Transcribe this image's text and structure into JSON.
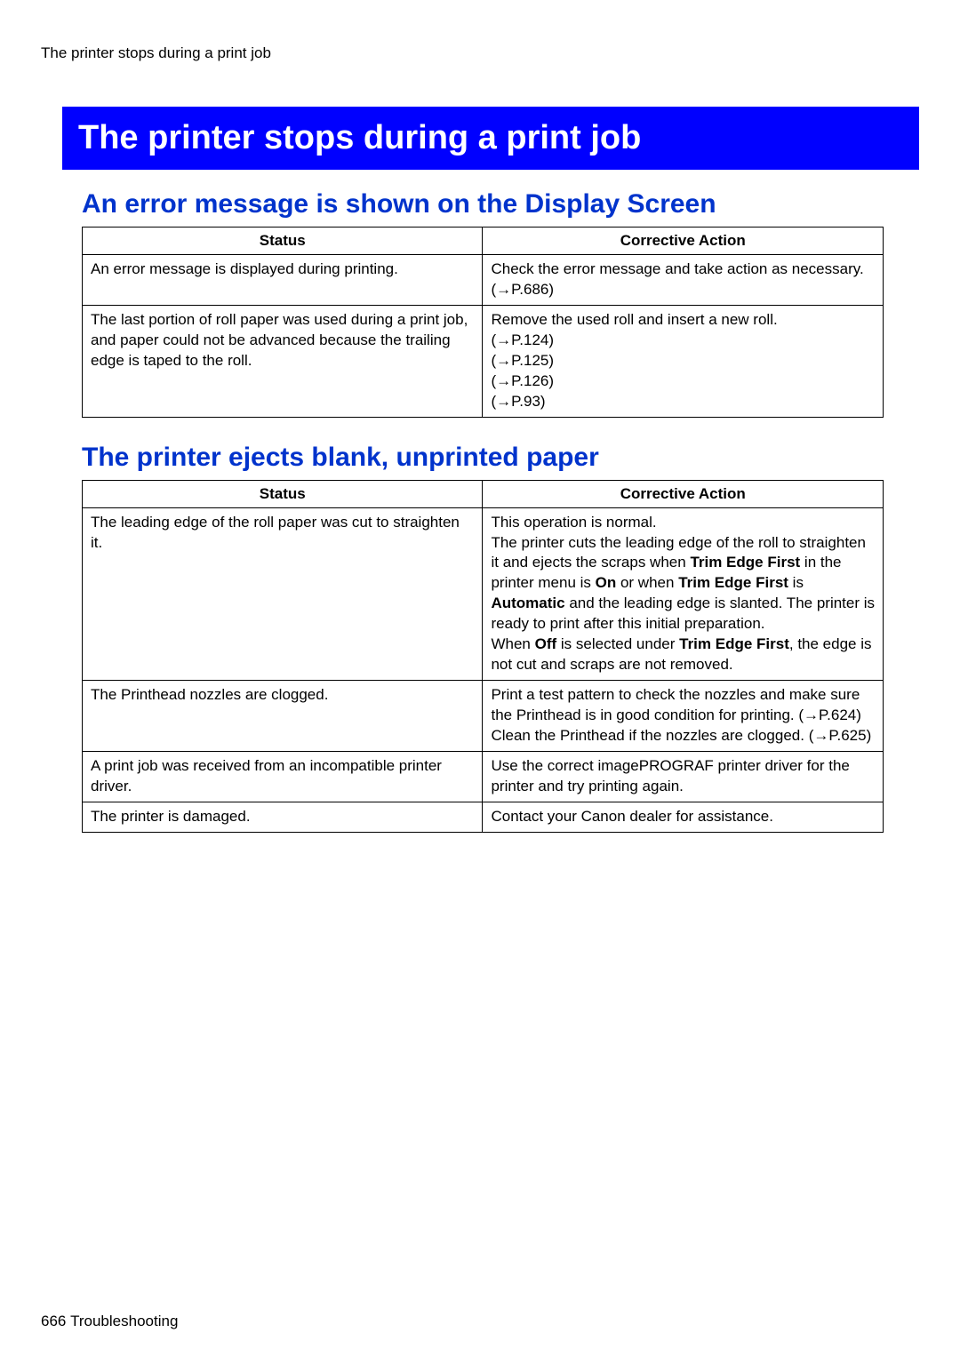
{
  "running_header": "The printer stops during a print job",
  "main_heading": {
    "text": "The printer stops during a print job",
    "background_color": "#0000FF",
    "text_color": "#FFFFFF"
  },
  "section1": {
    "heading": "An error message is shown on the Display Screen",
    "heading_color": "#0033CC",
    "columns": {
      "status": "Status",
      "action": "Corrective Action"
    },
    "rows": [
      {
        "status": "An error message is displayed during printing.",
        "action": [
          {
            "t": "Check the error message and take action as necessary."
          },
          {
            "t": "(→P.686)"
          }
        ]
      },
      {
        "status": "The last portion of roll paper was used during a print job, and paper could not be advanced because the trailing edge is taped to the roll.",
        "action": [
          {
            "t": "Remove the used roll and insert a new roll."
          },
          {
            "t": "(→P.124)"
          },
          {
            "t": "(→P.125)"
          },
          {
            "t": "(→P.126)"
          },
          {
            "t": "(→P.93)"
          }
        ]
      }
    ]
  },
  "section2": {
    "heading": "The printer ejects blank, unprinted paper",
    "heading_color": "#0033CC",
    "columns": {
      "status": "Status",
      "action": "Corrective Action"
    },
    "rows": [
      {
        "status": "The leading edge of the roll paper was cut to straighten it.",
        "action_parts": [
          {
            "text": "This operation is normal.",
            "br": true
          },
          {
            "text": "The printer cuts the leading edge of the roll to straighten it and ejects the scraps when "
          },
          {
            "text": "Trim Edge First",
            "bold": true
          },
          {
            "text": " in the printer menu is "
          },
          {
            "text": "On",
            "bold": true
          },
          {
            "text": " or when "
          },
          {
            "text": "Trim Edge First",
            "bold": true
          },
          {
            "text": " is "
          },
          {
            "text": "Automatic",
            "bold": true
          },
          {
            "text": " and the leading edge is slanted. The printer is ready to print after this initial preparation.",
            "br": true
          },
          {
            "text": "When "
          },
          {
            "text": "Off",
            "bold": true
          },
          {
            "text": " is selected under "
          },
          {
            "text": "Trim Edge First",
            "bold": true
          },
          {
            "text": ", the edge is not cut and scraps are not removed."
          }
        ]
      },
      {
        "status": "The Printhead nozzles are clogged.",
        "action": [
          {
            "t": "Print a test pattern to check the nozzles and make sure the Printhead is in good condition for printing. (→P.624)"
          },
          {
            "t": "Clean the Printhead if the nozzles are clogged. (→P.625)"
          }
        ]
      },
      {
        "status": "A print job was received from an incompatible printer driver.",
        "action": [
          {
            "t": "Use the correct imagePROGRAF printer driver for the printer and try printing again."
          }
        ]
      },
      {
        "status": "The printer is damaged.",
        "action": [
          {
            "t": "Contact your Canon dealer for assistance."
          }
        ]
      }
    ]
  },
  "footer_page": "666",
  "footer_section": "Troubleshooting"
}
